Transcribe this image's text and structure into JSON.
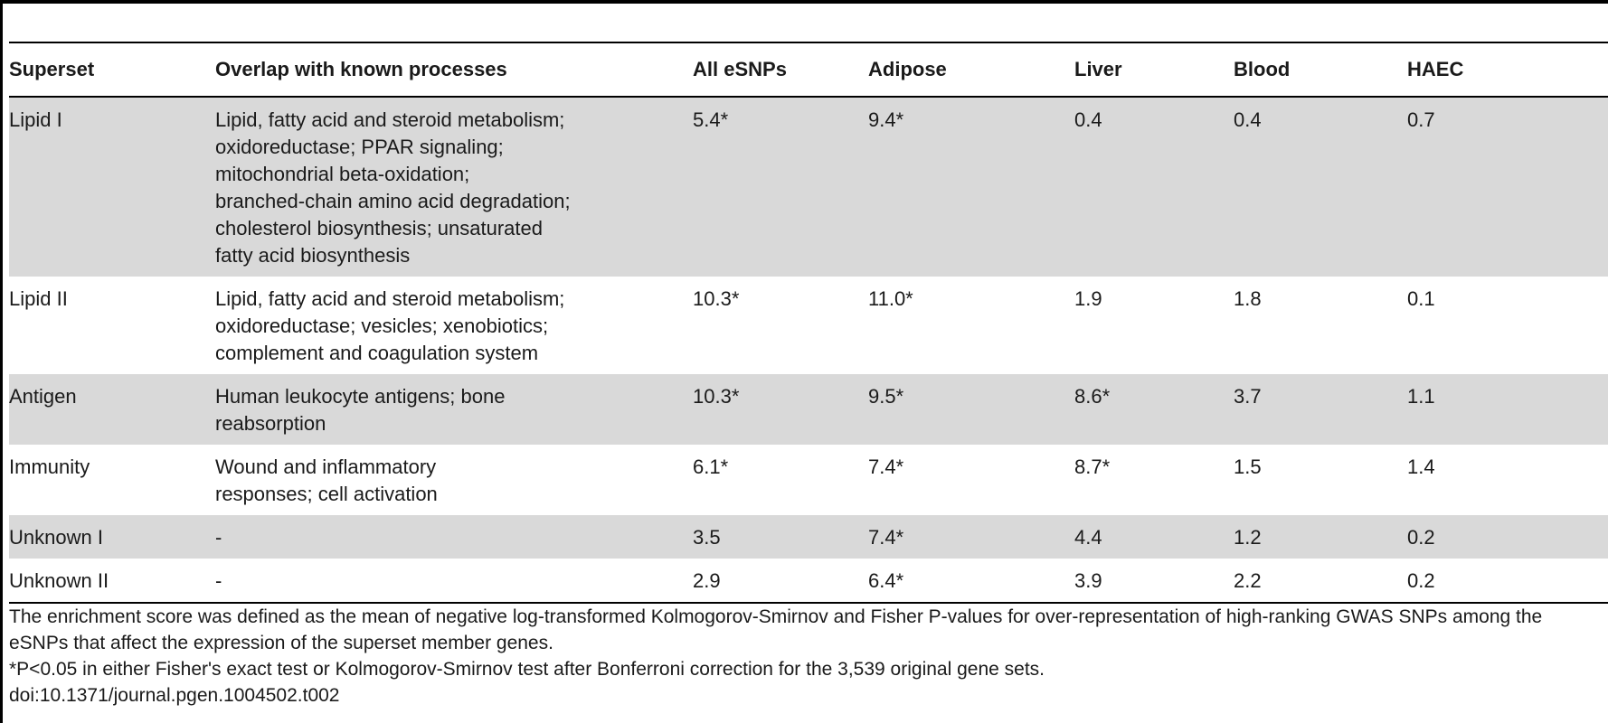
{
  "table": {
    "headers": [
      "Superset",
      "Overlap with known processes",
      "All eSNPs",
      "Adipose",
      "Liver",
      "Blood",
      "HAEC"
    ],
    "rows": [
      {
        "superset": "Lipid I",
        "overlap": [
          "Lipid, fatty acid and steroid metabolism;",
          "oxidoreductase; PPAR signaling;",
          "mitochondrial beta-oxidation;",
          "branched-chain amino acid degradation;",
          "cholesterol biosynthesis; unsaturated",
          "fatty acid biosynthesis"
        ],
        "all_esnps": "5.4*",
        "adipose": "9.4*",
        "liver": "0.4",
        "blood": "0.4",
        "haec": "0.7"
      },
      {
        "superset": "Lipid II",
        "overlap": [
          "Lipid, fatty acid and steroid metabolism;",
          "oxidoreductase; vesicles; xenobiotics;",
          "complement and coagulation system"
        ],
        "all_esnps": "10.3*",
        "adipose": "11.0*",
        "liver": "1.9",
        "blood": "1.8",
        "haec": "0.1"
      },
      {
        "superset": "Antigen",
        "overlap": [
          "Human leukocyte antigens; bone",
          "reabsorption"
        ],
        "all_esnps": "10.3*",
        "adipose": "9.5*",
        "liver": "8.6*",
        "blood": "3.7",
        "haec": "1.1"
      },
      {
        "superset": "Immunity",
        "overlap": [
          "Wound and inflammatory",
          "responses; cell activation"
        ],
        "all_esnps": "6.1*",
        "adipose": "7.4*",
        "liver": "8.7*",
        "blood": "1.5",
        "haec": "1.4"
      },
      {
        "superset": "Unknown I",
        "overlap": [
          "-"
        ],
        "all_esnps": "3.5",
        "adipose": "7.4*",
        "liver": "4.4",
        "blood": "1.2",
        "haec": "0.2"
      },
      {
        "superset": "Unknown II",
        "overlap": [
          "-"
        ],
        "all_esnps": "2.9",
        "adipose": "6.4*",
        "liver": "3.9",
        "blood": "2.2",
        "haec": "0.2"
      }
    ]
  },
  "footnotes": {
    "note": "The enrichment score was defined as the mean of negative log-transformed Kolmogorov-Smirnov and Fisher P-values for over-representation of high-ranking GWAS SNPs among the eSNPs that affect the expression of the superset member genes.",
    "significance": "*P<0.05 in either Fisher's exact test or Kolmogorov-Smirnov test after Bonferroni correction for the 3,539 original gene sets.",
    "doi": "doi:10.1371/journal.pgen.1004502.t002"
  }
}
